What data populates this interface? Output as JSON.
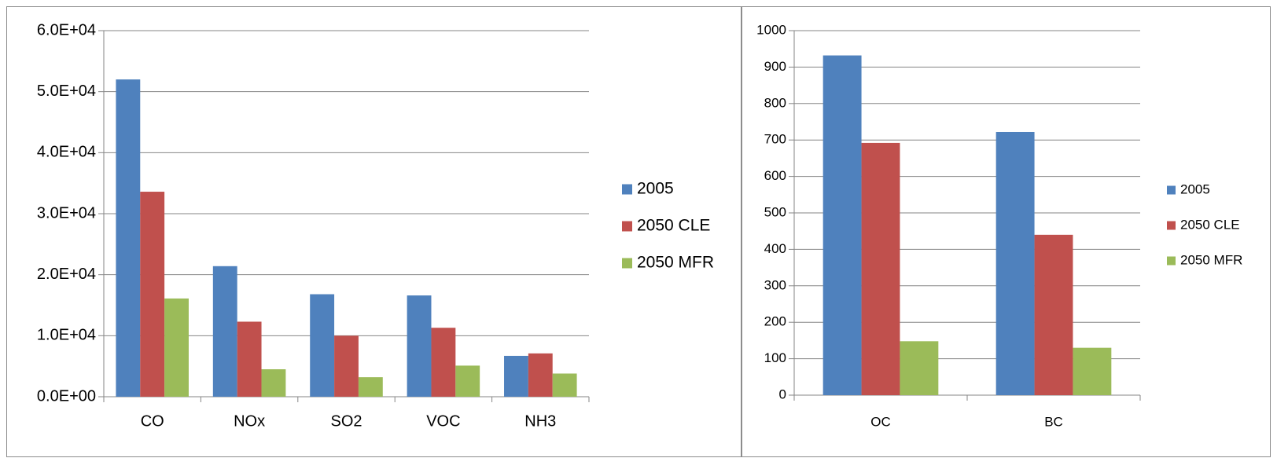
{
  "chart_data": [
    {
      "type": "bar",
      "categories": [
        "CO",
        "NOx",
        "SO2",
        "VOC",
        "NH3"
      ],
      "series": [
        {
          "name": "2005",
          "color": "#4f81bd",
          "values": [
            52000,
            21400,
            16800,
            16600,
            6700
          ]
        },
        {
          "name": "2050 CLE",
          "color": "#c0504d",
          "values": [
            33600,
            12300,
            10000,
            11300,
            7100
          ]
        },
        {
          "name": "2050 MFR",
          "color": "#9bbb59",
          "values": [
            16100,
            4500,
            3200,
            5100,
            3800
          ]
        }
      ],
      "ylim": [
        0,
        60000
      ],
      "yticks": [
        0,
        10000,
        20000,
        30000,
        40000,
        50000,
        60000
      ],
      "ytick_labels": [
        "0.0E+00",
        "1.0E+04",
        "2.0E+04",
        "3.0E+04",
        "4.0E+04",
        "5.0E+04",
        "6.0E+04"
      ],
      "grid": true,
      "legend_position": "right"
    },
    {
      "type": "bar",
      "categories": [
        "OC",
        "BC"
      ],
      "series": [
        {
          "name": "2005",
          "color": "#4f81bd",
          "values": [
            932,
            722
          ]
        },
        {
          "name": "2050 CLE",
          "color": "#c0504d",
          "values": [
            692,
            440
          ]
        },
        {
          "name": "2050 MFR",
          "color": "#9bbb59",
          "values": [
            148,
            130
          ]
        }
      ],
      "ylim": [
        0,
        1000
      ],
      "yticks": [
        0,
        100,
        200,
        300,
        400,
        500,
        600,
        700,
        800,
        900,
        1000
      ],
      "ytick_labels": [
        "0",
        "100",
        "200",
        "300",
        "400",
        "500",
        "600",
        "700",
        "800",
        "900",
        "1000"
      ],
      "grid": true,
      "legend_position": "right"
    }
  ]
}
